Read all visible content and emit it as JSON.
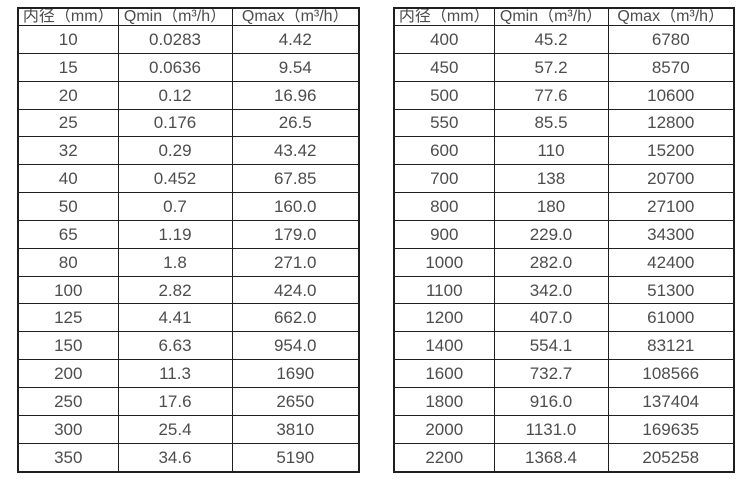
{
  "tables": [
    {
      "name": "flow-rate-table-small-diameters",
      "headers": [
        "内径（mm）",
        "Qmin（m³/h）",
        "Qmax（m³/h）"
      ],
      "rows": [
        [
          "10",
          "0.0283",
          "4.42"
        ],
        [
          "15",
          "0.0636",
          "9.54"
        ],
        [
          "20",
          "0.12",
          "16.96"
        ],
        [
          "25",
          "0.176",
          "26.5"
        ],
        [
          "32",
          "0.29",
          "43.42"
        ],
        [
          "40",
          "0.452",
          "67.85"
        ],
        [
          "50",
          "0.7",
          "160.0"
        ],
        [
          "65",
          "1.19",
          "179.0"
        ],
        [
          "80",
          "1.8",
          "271.0"
        ],
        [
          "100",
          "2.82",
          "424.0"
        ],
        [
          "125",
          "4.41",
          "662.0"
        ],
        [
          "150",
          "6.63",
          "954.0"
        ],
        [
          "200",
          "11.3",
          "1690"
        ],
        [
          "250",
          "17.6",
          "2650"
        ],
        [
          "300",
          "25.4",
          "3810"
        ],
        [
          "350",
          "34.6",
          "5190"
        ]
      ]
    },
    {
      "name": "flow-rate-table-large-diameters",
      "headers": [
        "内径（mm）",
        "Qmin（m³/h）",
        "Qmax（m³/h）"
      ],
      "rows": [
        [
          "400",
          "45.2",
          "6780"
        ],
        [
          "450",
          "57.2",
          "8570"
        ],
        [
          "500",
          "77.6",
          "10600"
        ],
        [
          "550",
          "85.5",
          "12800"
        ],
        [
          "600",
          "110",
          "15200"
        ],
        [
          "700",
          "138",
          "20700"
        ],
        [
          "800",
          "180",
          "27100"
        ],
        [
          "900",
          "229.0",
          "34300"
        ],
        [
          "1000",
          "282.0",
          "42400"
        ],
        [
          "1100",
          "342.0",
          "51300"
        ],
        [
          "1200",
          "407.0",
          "61000"
        ],
        [
          "1400",
          "554.1",
          "83121"
        ],
        [
          "1600",
          "732.7",
          "108566"
        ],
        [
          "1800",
          "916.0",
          "137404"
        ],
        [
          "2000",
          "1131.0",
          "169635"
        ],
        [
          "2200",
          "1368.4",
          "205258"
        ]
      ]
    }
  ],
  "colors": {
    "border": "#1f1f1f",
    "text": "#4d4d4d",
    "background": "#ffffff"
  }
}
